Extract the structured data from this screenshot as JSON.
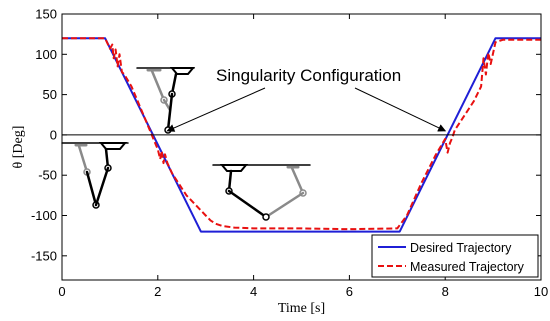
{
  "chart_data": {
    "type": "line",
    "title": "",
    "xlabel": "Time [s]",
    "ylabel": "θ [Deg]",
    "xlim": [
      0,
      10
    ],
    "ylim": [
      -180,
      150
    ],
    "xticks": [
      0,
      2,
      4,
      6,
      8,
      10
    ],
    "yticks": [
      150,
      100,
      50,
      0,
      -50,
      -100,
      -150
    ],
    "grid": false,
    "legend_position": "bottom-right",
    "colors": {
      "desired": "#1f1fd6",
      "measured": "#e81010",
      "reference": "#000000",
      "robot_gray": "#8a8a8a",
      "robot_black": "#000000"
    },
    "series": [
      {
        "name": "Desired Trajectory",
        "style": "solid",
        "x": [
          0,
          0.9,
          2.9,
          7.05,
          9.05,
          10
        ],
        "y": [
          120,
          120,
          -120,
          -120,
          120,
          120
        ]
      },
      {
        "name": "Measured Trajectory",
        "style": "dashed",
        "x": [
          0,
          0.9,
          1.0,
          1.05,
          1.08,
          1.12,
          1.16,
          1.2,
          1.25,
          1.3,
          1.45,
          1.7,
          2.0,
          2.05,
          2.08,
          2.12,
          2.15,
          2.2,
          2.3,
          2.6,
          3.0,
          3.1,
          3.2,
          3.35,
          3.6,
          4.0,
          5.0,
          6.0,
          7.0,
          7.2,
          7.5,
          7.8,
          8.0,
          8.05,
          8.1,
          8.15,
          8.2,
          8.6,
          8.75,
          8.8,
          8.85,
          8.9,
          8.95,
          9.05,
          9.2,
          10
        ],
        "y": [
          120,
          120,
          107,
          112,
          95,
          106,
          85,
          100,
          78,
          75,
          60,
          25,
          -18,
          -30,
          -20,
          -35,
          -24,
          -35,
          -48,
          -75,
          -100,
          -106,
          -110,
          -113,
          -115,
          -116,
          -116,
          -117,
          -116,
          -100,
          -60,
          -25,
          -5,
          -22,
          -10,
          -3,
          6,
          42,
          60,
          95,
          75,
          102,
          88,
          115,
          118,
          118
        ]
      }
    ],
    "annotations": [
      {
        "text": "Singularity Configuration",
        "arrow_to": [
          [
            2.2,
            5
          ],
          [
            8.0,
            5
          ]
        ]
      }
    ]
  }
}
